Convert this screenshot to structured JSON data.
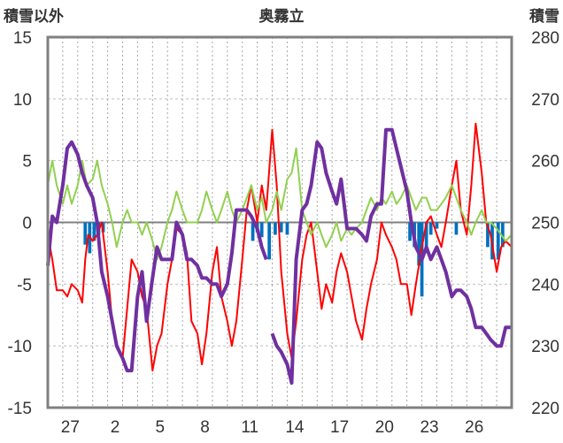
{
  "chart_data": {
    "type": "line",
    "title": "奥霧立",
    "left_axis_title": "積雪以外",
    "right_axis_title": "積雪",
    "left_axis": {
      "range": [
        -15,
        15
      ],
      "ticks": [
        "15",
        "10",
        "5",
        "0",
        "-5",
        "-10",
        "-15"
      ]
    },
    "right_axis": {
      "range": [
        220,
        280
      ],
      "ticks": [
        "280",
        "270",
        "260",
        "250",
        "240",
        "230",
        "220"
      ]
    },
    "x_range": [
      0,
      31
    ],
    "x_tick_labels": [
      {
        "label": "27",
        "x": 1.5
      },
      {
        "label": "2",
        "x": 4.5
      },
      {
        "label": "5",
        "x": 7.5
      },
      {
        "label": "8",
        "x": 10.5
      },
      {
        "label": "11",
        "x": 13.5
      },
      {
        "label": "14",
        "x": 16.5
      },
      {
        "label": "17",
        "x": 19.5
      },
      {
        "label": "20",
        "x": 22.5
      },
      {
        "label": "23",
        "x": 25.5
      },
      {
        "label": "26",
        "x": 28.5
      }
    ],
    "grid": {
      "horizontal": true,
      "vertical_dotted_per_day": true
    },
    "series": [
      {
        "color": "#ff0000",
        "axis": "left",
        "points": [
          [
            0,
            -1
          ],
          [
            0.3,
            -3
          ],
          [
            0.6,
            -5.5
          ],
          [
            1,
            -5.5
          ],
          [
            1.3,
            -6
          ],
          [
            1.6,
            -5
          ],
          [
            2,
            -5.5
          ],
          [
            2.3,
            -6.5
          ],
          [
            2.5,
            -3
          ],
          [
            2.7,
            -1
          ],
          [
            3,
            -1.5
          ],
          [
            3.3,
            -1
          ],
          [
            3.6,
            0
          ],
          [
            4,
            -4
          ],
          [
            4.3,
            -8
          ],
          [
            4.6,
            -10
          ],
          [
            5,
            -11
          ],
          [
            5.3,
            -7
          ],
          [
            5.6,
            -3
          ],
          [
            6,
            -4
          ],
          [
            6.3,
            -6
          ],
          [
            6.6,
            -7
          ],
          [
            7,
            -12
          ],
          [
            7.3,
            -10
          ],
          [
            7.6,
            -9
          ],
          [
            8,
            -5
          ],
          [
            8.3,
            -3
          ],
          [
            8.6,
            -0.5
          ],
          [
            9,
            -1
          ],
          [
            9.3,
            -2.5
          ],
          [
            9.6,
            -8
          ],
          [
            10,
            -9
          ],
          [
            10.3,
            -11.5
          ],
          [
            10.6,
            -9
          ],
          [
            11,
            -4
          ],
          [
            11.3,
            -2
          ],
          [
            11.6,
            -6
          ],
          [
            12,
            -8
          ],
          [
            12.3,
            -10
          ],
          [
            12.6,
            -8
          ],
          [
            13,
            -3
          ],
          [
            13.3,
            1
          ],
          [
            13.6,
            3
          ],
          [
            14,
            0
          ],
          [
            14.3,
            3
          ],
          [
            14.6,
            1
          ],
          [
            15,
            7.5
          ],
          [
            15.3,
            3
          ],
          [
            15.6,
            -4
          ],
          [
            16,
            -9
          ],
          [
            16.3,
            -11
          ],
          [
            16.6,
            -8
          ],
          [
            17,
            -3
          ],
          [
            17.3,
            -1
          ],
          [
            17.6,
            0
          ],
          [
            18,
            -4
          ],
          [
            18.3,
            -7
          ],
          [
            18.6,
            -5
          ],
          [
            19,
            -6.5
          ],
          [
            19.3,
            -4
          ],
          [
            19.6,
            -2.5
          ],
          [
            20,
            -4
          ],
          [
            20.3,
            -6
          ],
          [
            20.6,
            -8
          ],
          [
            21,
            -9.5
          ],
          [
            21.3,
            -7
          ],
          [
            21.6,
            -5
          ],
          [
            22,
            -3
          ],
          [
            22.3,
            0
          ],
          [
            22.6,
            -1
          ],
          [
            23,
            -2
          ],
          [
            23.3,
            -3
          ],
          [
            23.6,
            -5
          ],
          [
            24,
            -5
          ],
          [
            24.3,
            -7.5
          ],
          [
            24.6,
            -5
          ],
          [
            25,
            -2
          ],
          [
            25.3,
            0
          ],
          [
            25.6,
            0.5
          ],
          [
            26,
            -1
          ],
          [
            26.3,
            -2
          ],
          [
            26.6,
            0
          ],
          [
            27,
            3
          ],
          [
            27.3,
            5
          ],
          [
            27.6,
            1
          ],
          [
            28,
            -1
          ],
          [
            28.3,
            3
          ],
          [
            28.6,
            8
          ],
          [
            29,
            4
          ],
          [
            29.3,
            0
          ],
          [
            29.6,
            -1
          ],
          [
            30,
            -4
          ],
          [
            30.3,
            -2
          ],
          [
            30.6,
            -1.5
          ],
          [
            31,
            -2
          ]
        ]
      },
      {
        "color": "#92d050",
        "axis": "left",
        "points": [
          [
            0,
            3
          ],
          [
            0.3,
            5
          ],
          [
            0.6,
            3
          ],
          [
            1,
            1.5
          ],
          [
            1.3,
            3
          ],
          [
            1.6,
            1.5
          ],
          [
            2,
            3
          ],
          [
            2.3,
            5
          ],
          [
            2.6,
            3
          ],
          [
            3,
            3.5
          ],
          [
            3.3,
            5
          ],
          [
            3.6,
            3
          ],
          [
            4,
            1.5
          ],
          [
            4.3,
            0
          ],
          [
            4.6,
            -2
          ],
          [
            5,
            0
          ],
          [
            5.3,
            1
          ],
          [
            5.6,
            0
          ],
          [
            6,
            0
          ],
          [
            6.3,
            -1
          ],
          [
            6.6,
            0
          ],
          [
            7,
            -1.5
          ],
          [
            7.3,
            -3
          ],
          [
            7.6,
            -2
          ],
          [
            8,
            0
          ],
          [
            8.3,
            1
          ],
          [
            8.6,
            2.5
          ],
          [
            9,
            1
          ],
          [
            9.3,
            0
          ],
          [
            9.6,
            0
          ],
          [
            10,
            0
          ],
          [
            10.3,
            1
          ],
          [
            10.6,
            2.5
          ],
          [
            11,
            1
          ],
          [
            11.3,
            0
          ],
          [
            11.6,
            1
          ],
          [
            12,
            2.5
          ],
          [
            12.3,
            1
          ],
          [
            12.6,
            0
          ],
          [
            13,
            1
          ],
          [
            13.3,
            2
          ],
          [
            13.6,
            3
          ],
          [
            14,
            1
          ],
          [
            14.3,
            2
          ],
          [
            14.6,
            0
          ],
          [
            15,
            1
          ],
          [
            15.3,
            2.5
          ],
          [
            15.6,
            1
          ],
          [
            16,
            3.5
          ],
          [
            16.3,
            4
          ],
          [
            16.6,
            6
          ],
          [
            17,
            1
          ],
          [
            17.3,
            0
          ],
          [
            17.6,
            -1
          ],
          [
            18,
            0
          ],
          [
            18.3,
            -1
          ],
          [
            18.6,
            -2
          ],
          [
            19,
            -1
          ],
          [
            19.3,
            0
          ],
          [
            19.6,
            -1.5
          ],
          [
            20,
            -0.5
          ],
          [
            20.3,
            -1
          ],
          [
            20.6,
            -0.5
          ],
          [
            21,
            0
          ],
          [
            21.3,
            1
          ],
          [
            21.6,
            2
          ],
          [
            22,
            1
          ],
          [
            22.3,
            2
          ],
          [
            22.6,
            1.5
          ],
          [
            23,
            2.5
          ],
          [
            23.3,
            1.5
          ],
          [
            23.6,
            2
          ],
          [
            24,
            3
          ],
          [
            24.3,
            2
          ],
          [
            24.6,
            1
          ],
          [
            25,
            2
          ],
          [
            25.3,
            2
          ],
          [
            25.6,
            1
          ],
          [
            26,
            1
          ],
          [
            26.3,
            1.5
          ],
          [
            26.6,
            2
          ],
          [
            27,
            3
          ],
          [
            27.3,
            2
          ],
          [
            27.6,
            1
          ],
          [
            28,
            0
          ],
          [
            28.3,
            -1
          ],
          [
            28.6,
            0
          ],
          [
            29,
            1
          ],
          [
            29.3,
            0
          ],
          [
            29.6,
            0
          ],
          [
            30,
            -0.5
          ],
          [
            30.3,
            -1
          ],
          [
            30.6,
            -1.5
          ],
          [
            31,
            -1
          ]
        ]
      },
      {
        "color": "#7030a0",
        "axis": "right",
        "points": [
          [
            0,
            243
          ],
          [
            0.3,
            251
          ],
          [
            0.6,
            250
          ],
          [
            1,
            256
          ],
          [
            1.3,
            262
          ],
          [
            1.6,
            263
          ],
          [
            2,
            261
          ],
          [
            2.3,
            258
          ],
          [
            2.6,
            256
          ],
          [
            3,
            254
          ],
          [
            3.3,
            250
          ],
          [
            3.6,
            242
          ],
          [
            4,
            238
          ],
          [
            4.3,
            234
          ],
          [
            4.6,
            230
          ],
          [
            5,
            228
          ],
          [
            5.3,
            226
          ],
          [
            5.6,
            226
          ],
          [
            6,
            238
          ],
          [
            6.3,
            242
          ],
          [
            6.6,
            234
          ],
          [
            7,
            241
          ],
          [
            7.3,
            246
          ],
          [
            7.6,
            244
          ],
          [
            8,
            244
          ],
          [
            8.3,
            244
          ],
          [
            8.6,
            250
          ],
          [
            9,
            248
          ],
          [
            9.3,
            244
          ],
          [
            9.6,
            244
          ],
          [
            10,
            243
          ],
          [
            10.3,
            241
          ],
          [
            10.6,
            241
          ],
          [
            11,
            240
          ],
          [
            11.3,
            240
          ],
          [
            11.6,
            238
          ],
          [
            12,
            240
          ],
          [
            12.3,
            245
          ],
          [
            12.6,
            252
          ],
          [
            13,
            252
          ],
          [
            13.3,
            252
          ],
          [
            13.6,
            251
          ],
          [
            14,
            249
          ],
          [
            14.3,
            246
          ],
          [
            14.6,
            244
          ]
        ],
        "segments_break_after": [
          44
        ],
        "points_b": [
          [
            15,
            232
          ],
          [
            15.3,
            230
          ],
          [
            15.6,
            229
          ],
          [
            16,
            227
          ],
          [
            16.3,
            224
          ],
          [
            16.6,
            244
          ],
          [
            17,
            252
          ],
          [
            17.3,
            253
          ],
          [
            17.6,
            256
          ],
          [
            18,
            263
          ],
          [
            18.3,
            262
          ],
          [
            18.6,
            258
          ],
          [
            19,
            255
          ],
          [
            19.3,
            253
          ],
          [
            19.6,
            257
          ],
          [
            20,
            249
          ],
          [
            20.3,
            249
          ],
          [
            20.6,
            249
          ],
          [
            21,
            248
          ],
          [
            21.3,
            247
          ],
          [
            21.6,
            251
          ],
          [
            22,
            253
          ],
          [
            22.3,
            253
          ],
          [
            22.6,
            265
          ],
          [
            23,
            265
          ],
          [
            23.3,
            262
          ],
          [
            23.6,
            259
          ],
          [
            24,
            255
          ],
          [
            24.3,
            250
          ],
          [
            24.6,
            246
          ],
          [
            25,
            244
          ],
          [
            25.3,
            246
          ],
          [
            25.6,
            244
          ],
          [
            26,
            246
          ],
          [
            26.3,
            244
          ],
          [
            26.6,
            242
          ],
          [
            27,
            238
          ],
          [
            27.3,
            239
          ],
          [
            27.6,
            239
          ],
          [
            28,
            238
          ],
          [
            28.3,
            236
          ],
          [
            28.6,
            233
          ],
          [
            29,
            233
          ],
          [
            29.3,
            232
          ],
          [
            29.6,
            231
          ],
          [
            30,
            230
          ],
          [
            30.3,
            230
          ],
          [
            30.6,
            233
          ],
          [
            31,
            233
          ]
        ]
      }
    ],
    "bars": {
      "color": "#0070c0",
      "axis": "left",
      "points": [
        [
          2.5,
          -1.8
        ],
        [
          2.8,
          -2.5
        ],
        [
          3.1,
          -1.5
        ],
        [
          3.4,
          -1
        ],
        [
          3.7,
          -0.8
        ],
        [
          13.7,
          -1.5
        ],
        [
          14.0,
          -0.8
        ],
        [
          14.3,
          -1.2
        ],
        [
          14.8,
          -3
        ],
        [
          15.2,
          -1
        ],
        [
          15.6,
          -0.8
        ],
        [
          16.0,
          -1
        ],
        [
          24.2,
          -1.5
        ],
        [
          24.5,
          -2
        ],
        [
          24.8,
          -3.5
        ],
        [
          25.0,
          -6
        ],
        [
          25.3,
          -2.5
        ],
        [
          25.6,
          -1
        ],
        [
          26.0,
          -0.5
        ],
        [
          27.3,
          -1
        ],
        [
          29.4,
          -2
        ],
        [
          29.7,
          -3
        ],
        [
          30.1,
          -3
        ],
        [
          30.4,
          -2
        ]
      ]
    }
  }
}
